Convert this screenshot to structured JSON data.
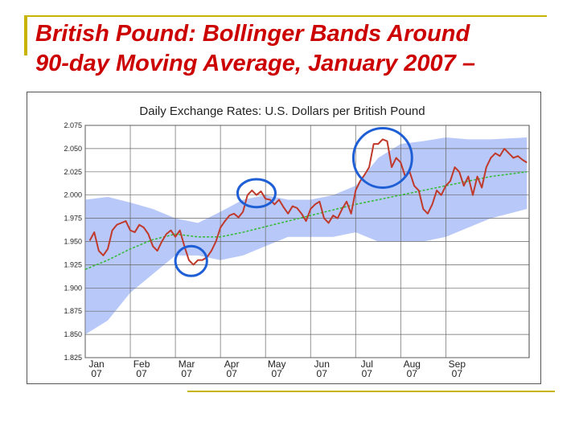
{
  "slide": {
    "title_line1": "British Pound: Bollinger Bands Around",
    "title_line2": "90-day Moving Average, January 2007 –"
  },
  "colors": {
    "title": "#cc0000",
    "accent_bar": "#c8b400",
    "band_fill": "#b8c8f8",
    "exchange_rate_line": "#c0392b",
    "moving_average_line": "#33bb33",
    "highlight_circle": "#1f5fd6"
  },
  "chart_data": {
    "type": "line",
    "title": "Daily Exchange Rates: U.S. Dollars per British Pound",
    "xlabel": "",
    "ylabel": "",
    "ylim": [
      1.825,
      2.075
    ],
    "yticks": [
      "2.075",
      "2.050",
      "2.025",
      "2.000",
      "1.975",
      "1.950",
      "1.925",
      "1.900",
      "1.875",
      "1.850",
      "1.825"
    ],
    "xtick_labels": [
      {
        "month": "Jan",
        "year": "07"
      },
      {
        "month": "Feb",
        "year": "07"
      },
      {
        "month": "Mar",
        "year": "07"
      },
      {
        "month": "Apr",
        "year": "07"
      },
      {
        "month": "May",
        "year": "07"
      },
      {
        "month": "Jun",
        "year": "07"
      },
      {
        "month": "Jul",
        "year": "07"
      },
      {
        "month": "Aug",
        "year": "07"
      },
      {
        "month": "Sep",
        "year": "07"
      }
    ],
    "grid": true,
    "x_unit": "months since start of January 2007",
    "series": [
      {
        "role": "exchange-rate",
        "points": [
          [
            0.1,
            1.951
          ],
          [
            0.2,
            1.96
          ],
          [
            0.3,
            1.94
          ],
          [
            0.4,
            1.935
          ],
          [
            0.5,
            1.942
          ],
          [
            0.6,
            1.962
          ],
          [
            0.7,
            1.968
          ],
          [
            0.8,
            1.97
          ],
          [
            0.9,
            1.972
          ],
          [
            1.0,
            1.962
          ],
          [
            1.1,
            1.96
          ],
          [
            1.2,
            1.968
          ],
          [
            1.3,
            1.965
          ],
          [
            1.4,
            1.958
          ],
          [
            1.5,
            1.945
          ],
          [
            1.6,
            1.94
          ],
          [
            1.7,
            1.95
          ],
          [
            1.8,
            1.958
          ],
          [
            1.9,
            1.962
          ],
          [
            2.0,
            1.955
          ],
          [
            2.1,
            1.962
          ],
          [
            2.2,
            1.945
          ],
          [
            2.3,
            1.93
          ],
          [
            2.4,
            1.925
          ],
          [
            2.5,
            1.93
          ],
          [
            2.6,
            1.93
          ],
          [
            2.7,
            1.933
          ],
          [
            2.8,
            1.94
          ],
          [
            2.9,
            1.95
          ],
          [
            3.0,
            1.965
          ],
          [
            3.1,
            1.972
          ],
          [
            3.2,
            1.978
          ],
          [
            3.3,
            1.98
          ],
          [
            3.4,
            1.976
          ],
          [
            3.5,
            1.982
          ],
          [
            3.6,
            2.0
          ],
          [
            3.7,
            2.005
          ],
          [
            3.8,
            2.0
          ],
          [
            3.9,
            2.004
          ],
          [
            4.0,
            1.996
          ],
          [
            4.1,
            1.995
          ],
          [
            4.2,
            1.99
          ],
          [
            4.3,
            1.995
          ],
          [
            4.4,
            1.987
          ],
          [
            4.5,
            1.98
          ],
          [
            4.6,
            1.988
          ],
          [
            4.7,
            1.986
          ],
          [
            4.8,
            1.98
          ],
          [
            4.9,
            1.972
          ],
          [
            5.0,
            1.985
          ],
          [
            5.1,
            1.99
          ],
          [
            5.2,
            1.993
          ],
          [
            5.3,
            1.975
          ],
          [
            5.4,
            1.97
          ],
          [
            5.5,
            1.978
          ],
          [
            5.6,
            1.975
          ],
          [
            5.7,
            1.985
          ],
          [
            5.8,
            1.993
          ],
          [
            5.9,
            1.98
          ],
          [
            6.0,
            2.005
          ],
          [
            6.1,
            2.015
          ],
          [
            6.2,
            2.022
          ],
          [
            6.3,
            2.03
          ],
          [
            6.4,
            2.055
          ],
          [
            6.5,
            2.055
          ],
          [
            6.6,
            2.06
          ],
          [
            6.7,
            2.058
          ],
          [
            6.8,
            2.03
          ],
          [
            6.9,
            2.04
          ],
          [
            7.0,
            2.035
          ],
          [
            7.1,
            2.02
          ],
          [
            7.2,
            2.025
          ],
          [
            7.3,
            2.01
          ],
          [
            7.4,
            2.005
          ],
          [
            7.5,
            1.985
          ],
          [
            7.6,
            1.98
          ],
          [
            7.7,
            1.99
          ],
          [
            7.8,
            2.005
          ],
          [
            7.9,
            2.0
          ],
          [
            8.0,
            2.01
          ],
          [
            8.1,
            2.015
          ],
          [
            8.2,
            2.03
          ],
          [
            8.3,
            2.025
          ],
          [
            8.4,
            2.01
          ],
          [
            8.5,
            2.02
          ],
          [
            8.6,
            2.0
          ],
          [
            8.7,
            2.02
          ],
          [
            8.8,
            2.008
          ],
          [
            8.9,
            2.03
          ],
          [
            9.0,
            2.04
          ],
          [
            9.1,
            2.045
          ],
          [
            9.2,
            2.042
          ],
          [
            9.3,
            2.05
          ],
          [
            9.4,
            2.045
          ],
          [
            9.5,
            2.04
          ],
          [
            9.6,
            2.042
          ],
          [
            9.7,
            2.038
          ],
          [
            9.8,
            2.035
          ]
        ]
      },
      {
        "role": "moving-average",
        "points": [
          [
            0.0,
            1.92
          ],
          [
            0.5,
            1.93
          ],
          [
            1.0,
            1.942
          ],
          [
            1.5,
            1.952
          ],
          [
            2.0,
            1.958
          ],
          [
            2.5,
            1.955
          ],
          [
            3.0,
            1.955
          ],
          [
            3.5,
            1.96
          ],
          [
            4.0,
            1.966
          ],
          [
            4.5,
            1.972
          ],
          [
            5.0,
            1.978
          ],
          [
            5.5,
            1.984
          ],
          [
            6.0,
            1.99
          ],
          [
            6.5,
            1.995
          ],
          [
            7.0,
            2.0
          ],
          [
            7.5,
            2.005
          ],
          [
            8.0,
            2.01
          ],
          [
            8.5,
            2.015
          ],
          [
            9.0,
            2.02
          ],
          [
            9.8,
            2.025
          ]
        ]
      },
      {
        "role": "band-upper",
        "points": [
          [
            0.0,
            1.995
          ],
          [
            0.5,
            1.998
          ],
          [
            1.0,
            1.992
          ],
          [
            1.5,
            1.985
          ],
          [
            2.0,
            1.975
          ],
          [
            2.5,
            1.97
          ],
          [
            3.0,
            1.982
          ],
          [
            3.5,
            1.995
          ],
          [
            4.0,
            2.0
          ],
          [
            4.5,
            1.995
          ],
          [
            5.0,
            1.995
          ],
          [
            5.5,
            2.0
          ],
          [
            6.0,
            2.01
          ],
          [
            6.5,
            2.04
          ],
          [
            7.0,
            2.055
          ],
          [
            7.5,
            2.058
          ],
          [
            8.0,
            2.062
          ],
          [
            8.5,
            2.06
          ],
          [
            9.0,
            2.06
          ],
          [
            9.8,
            2.062
          ]
        ]
      },
      {
        "role": "band-lower",
        "points": [
          [
            0.0,
            1.85
          ],
          [
            0.5,
            1.865
          ],
          [
            1.0,
            1.895
          ],
          [
            1.5,
            1.915
          ],
          [
            2.0,
            1.935
          ],
          [
            2.5,
            1.935
          ],
          [
            3.0,
            1.93
          ],
          [
            3.5,
            1.935
          ],
          [
            4.0,
            1.945
          ],
          [
            4.5,
            1.955
          ],
          [
            5.0,
            1.955
          ],
          [
            5.5,
            1.955
          ],
          [
            6.0,
            1.96
          ],
          [
            6.5,
            1.95
          ],
          [
            7.0,
            1.95
          ],
          [
            7.5,
            1.95
          ],
          [
            8.0,
            1.955
          ],
          [
            8.5,
            1.965
          ],
          [
            9.0,
            1.975
          ],
          [
            9.8,
            1.985
          ]
        ]
      }
    ],
    "highlights": [
      {
        "center": [
          2.35,
          1.929
        ],
        "spread": [
          0.35,
          0.016
        ]
      },
      {
        "center": [
          3.8,
          2.002
        ],
        "spread": [
          0.42,
          0.015
        ]
      },
      {
        "center": [
          6.6,
          2.04
        ],
        "spread": [
          0.65,
          0.032
        ]
      }
    ]
  }
}
